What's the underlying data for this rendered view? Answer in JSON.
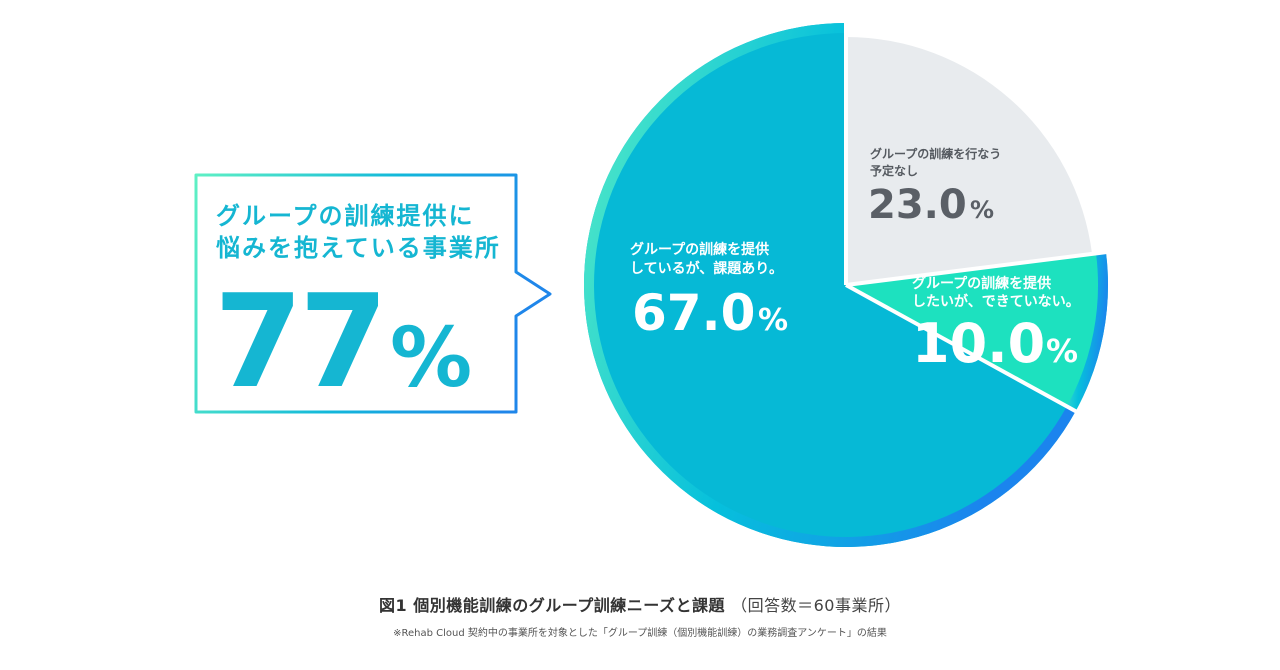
{
  "callout": {
    "line1": "グループの訓練提供に",
    "line2": "悩みを抱えている事業所",
    "big_number": "77",
    "big_unit": "%"
  },
  "chart_data": {
    "type": "pie",
    "slices": [
      {
        "label_line1": "グループの訓練を行なう",
        "label_line2": "予定なし",
        "value": 23.0,
        "value_text": "23.0",
        "unit": "%",
        "color": "#e8ebee"
      },
      {
        "label_line1": "グループの訓練を提供",
        "label_line2": "したいが、できていない。",
        "value": 10.0,
        "value_text": "10.0",
        "unit": "%",
        "color": "#1de1bf"
      },
      {
        "label_line1": "グループの訓練を提供",
        "label_line2": "しているが、課題あり。",
        "value": 67.0,
        "value_text": "67.0",
        "unit": "%",
        "color": "#06b9d6"
      }
    ]
  },
  "caption": {
    "title": "図1 個別機能訓練のグループ訓練ニーズと課題",
    "title_sub": "（回答数＝60事業所）",
    "note": "※Rehab Cloud 契約中の事業所を対象とした「グループ訓練（個別機能訓練）の業務調査アンケート」の結果"
  },
  "colors": {
    "callout_text": "#15b6d2",
    "ring_gradient_start": "#4fe9c7",
    "ring_gradient_end": "#1b8ef0",
    "gray_label": "#555a60"
  }
}
